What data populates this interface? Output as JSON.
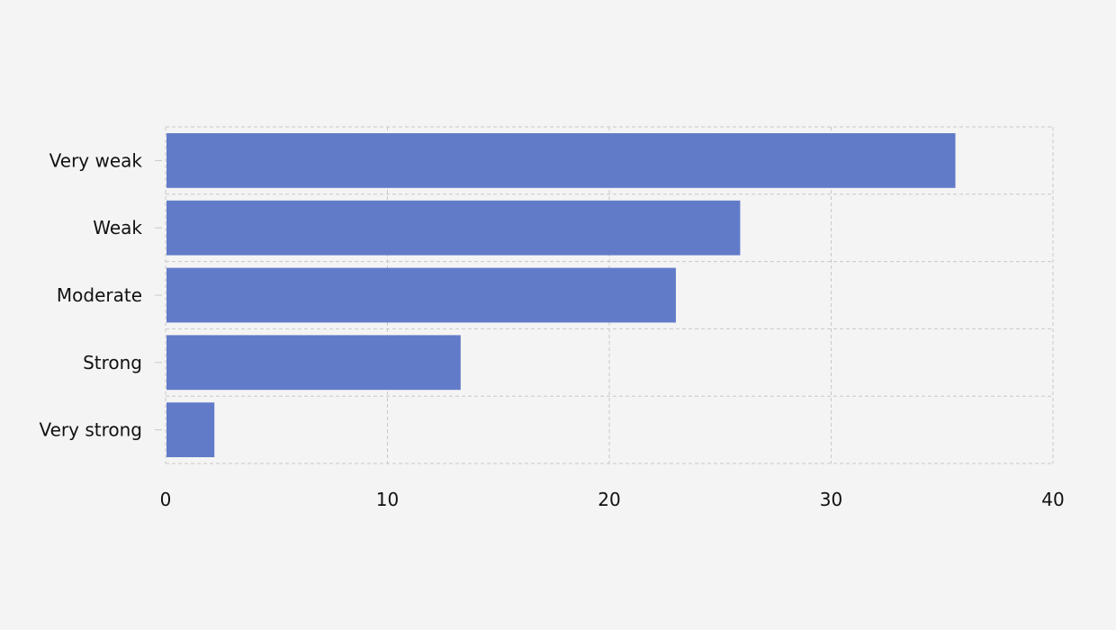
{
  "chart_data": {
    "type": "bar",
    "orientation": "horizontal",
    "categories": [
      "Very weak",
      "Weak",
      "Moderate",
      "Strong",
      "Very strong"
    ],
    "values": [
      35.6,
      25.9,
      23.0,
      13.3,
      2.2
    ],
    "xlim": [
      0,
      40
    ],
    "xticks": [
      "0",
      "10",
      "20",
      "30",
      "40"
    ],
    "grid": true,
    "title": "",
    "xlabel": "",
    "ylabel": "",
    "colors": {
      "bar": "#627bc9",
      "grid": "#c8c8c8",
      "background": "#f4f4f4"
    }
  }
}
